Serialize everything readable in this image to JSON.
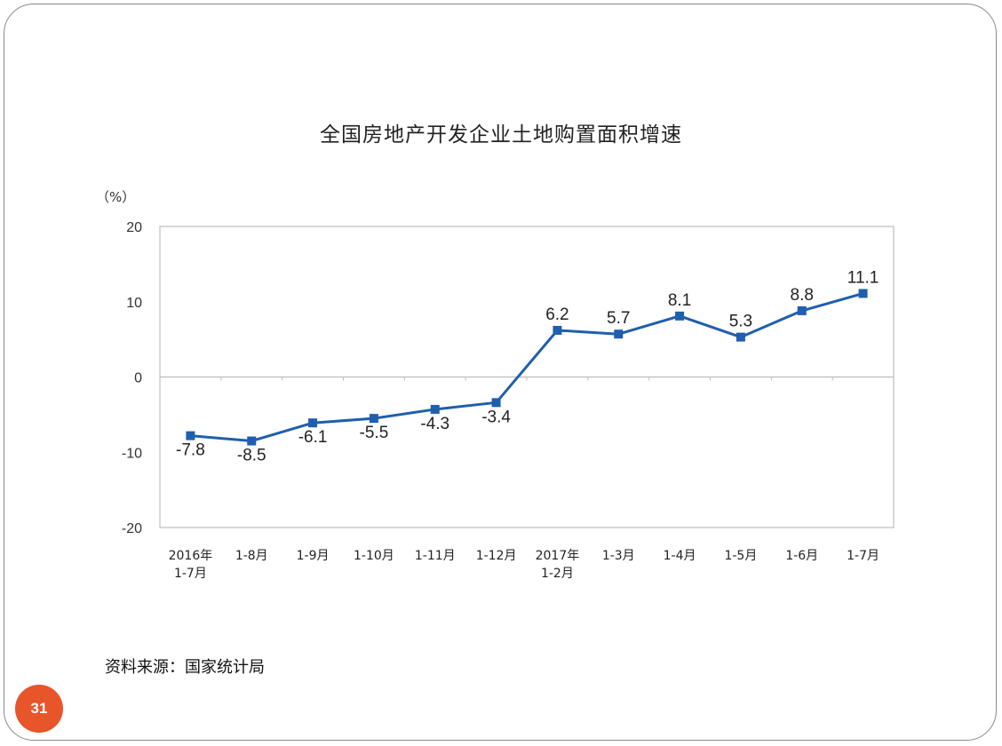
{
  "slide": {
    "page_number": "31",
    "source": "资料来源：国家统计局"
  },
  "chart_data": {
    "type": "line",
    "title": "全国房地产开发企业土地购置面积增速",
    "ylabel": "（%）",
    "xlabel": "",
    "ylim": [
      -20,
      20
    ],
    "yticks": [
      20,
      10,
      0,
      -10,
      -20
    ],
    "grid": false,
    "categories": [
      [
        "2016年",
        "1-7月"
      ],
      [
        "1-8月"
      ],
      [
        "1-9月"
      ],
      [
        "1-10月"
      ],
      [
        "1-11月"
      ],
      [
        "1-12月"
      ],
      [
        "2017年",
        "1-2月"
      ],
      [
        "1-3月"
      ],
      [
        "1-4月"
      ],
      [
        "1-5月"
      ],
      [
        "1-6月"
      ],
      [
        "1-7月"
      ]
    ],
    "series": [
      {
        "values": [
          -7.8,
          -8.5,
          -6.1,
          -5.5,
          -4.3,
          -3.4,
          6.2,
          5.7,
          8.1,
          5.3,
          8.8,
          11.1
        ],
        "labels": [
          "-7.8",
          "-8.5",
          "-6.1",
          "-5.5",
          "-4.3",
          "-3.4",
          "6.2",
          "5.7",
          "8.1",
          "5.3",
          "8.8",
          "11.1"
        ],
        "color": "#1f5fad"
      }
    ]
  }
}
